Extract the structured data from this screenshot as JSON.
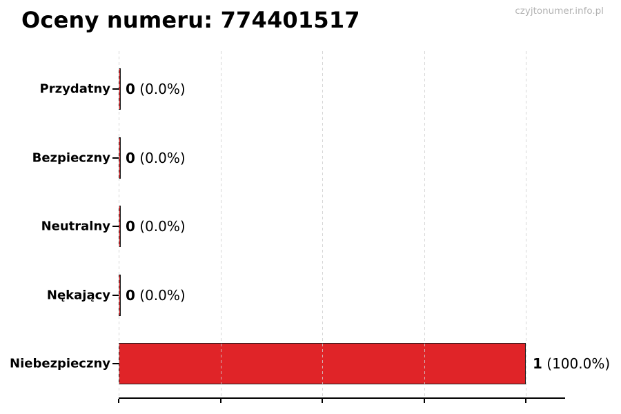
{
  "title": "Oceny numeru: 774401517",
  "watermark": "czyjtonumer.info.pl",
  "colors": {
    "bar_fill": "#e02428",
    "bar_edge": "#1a1a1a",
    "grid": "#cfcfcf",
    "text": "#000000",
    "watermark": "#b3b3b3"
  },
  "chart_data": {
    "type": "bar",
    "orientation": "horizontal",
    "title": "Oceny numeru: 774401517",
    "categories": [
      "Przydatny",
      "Bezpieczny",
      "Neutralny",
      "Nękający",
      "Niebezpieczny"
    ],
    "values": [
      0,
      0,
      0,
      0,
      1
    ],
    "counts_display": [
      "0",
      "0",
      "0",
      "0",
      "1"
    ],
    "percents_display": [
      "(0.0%)",
      "(0.0%)",
      "(0.0%)",
      "(0.0%)",
      "(100.0%)"
    ],
    "xlim": [
      0,
      1.1
    ],
    "xticks": [
      0,
      0.25,
      0.5,
      0.75,
      1.0
    ],
    "grid": true,
    "legend": false,
    "xlabel": "",
    "ylabel": ""
  }
}
